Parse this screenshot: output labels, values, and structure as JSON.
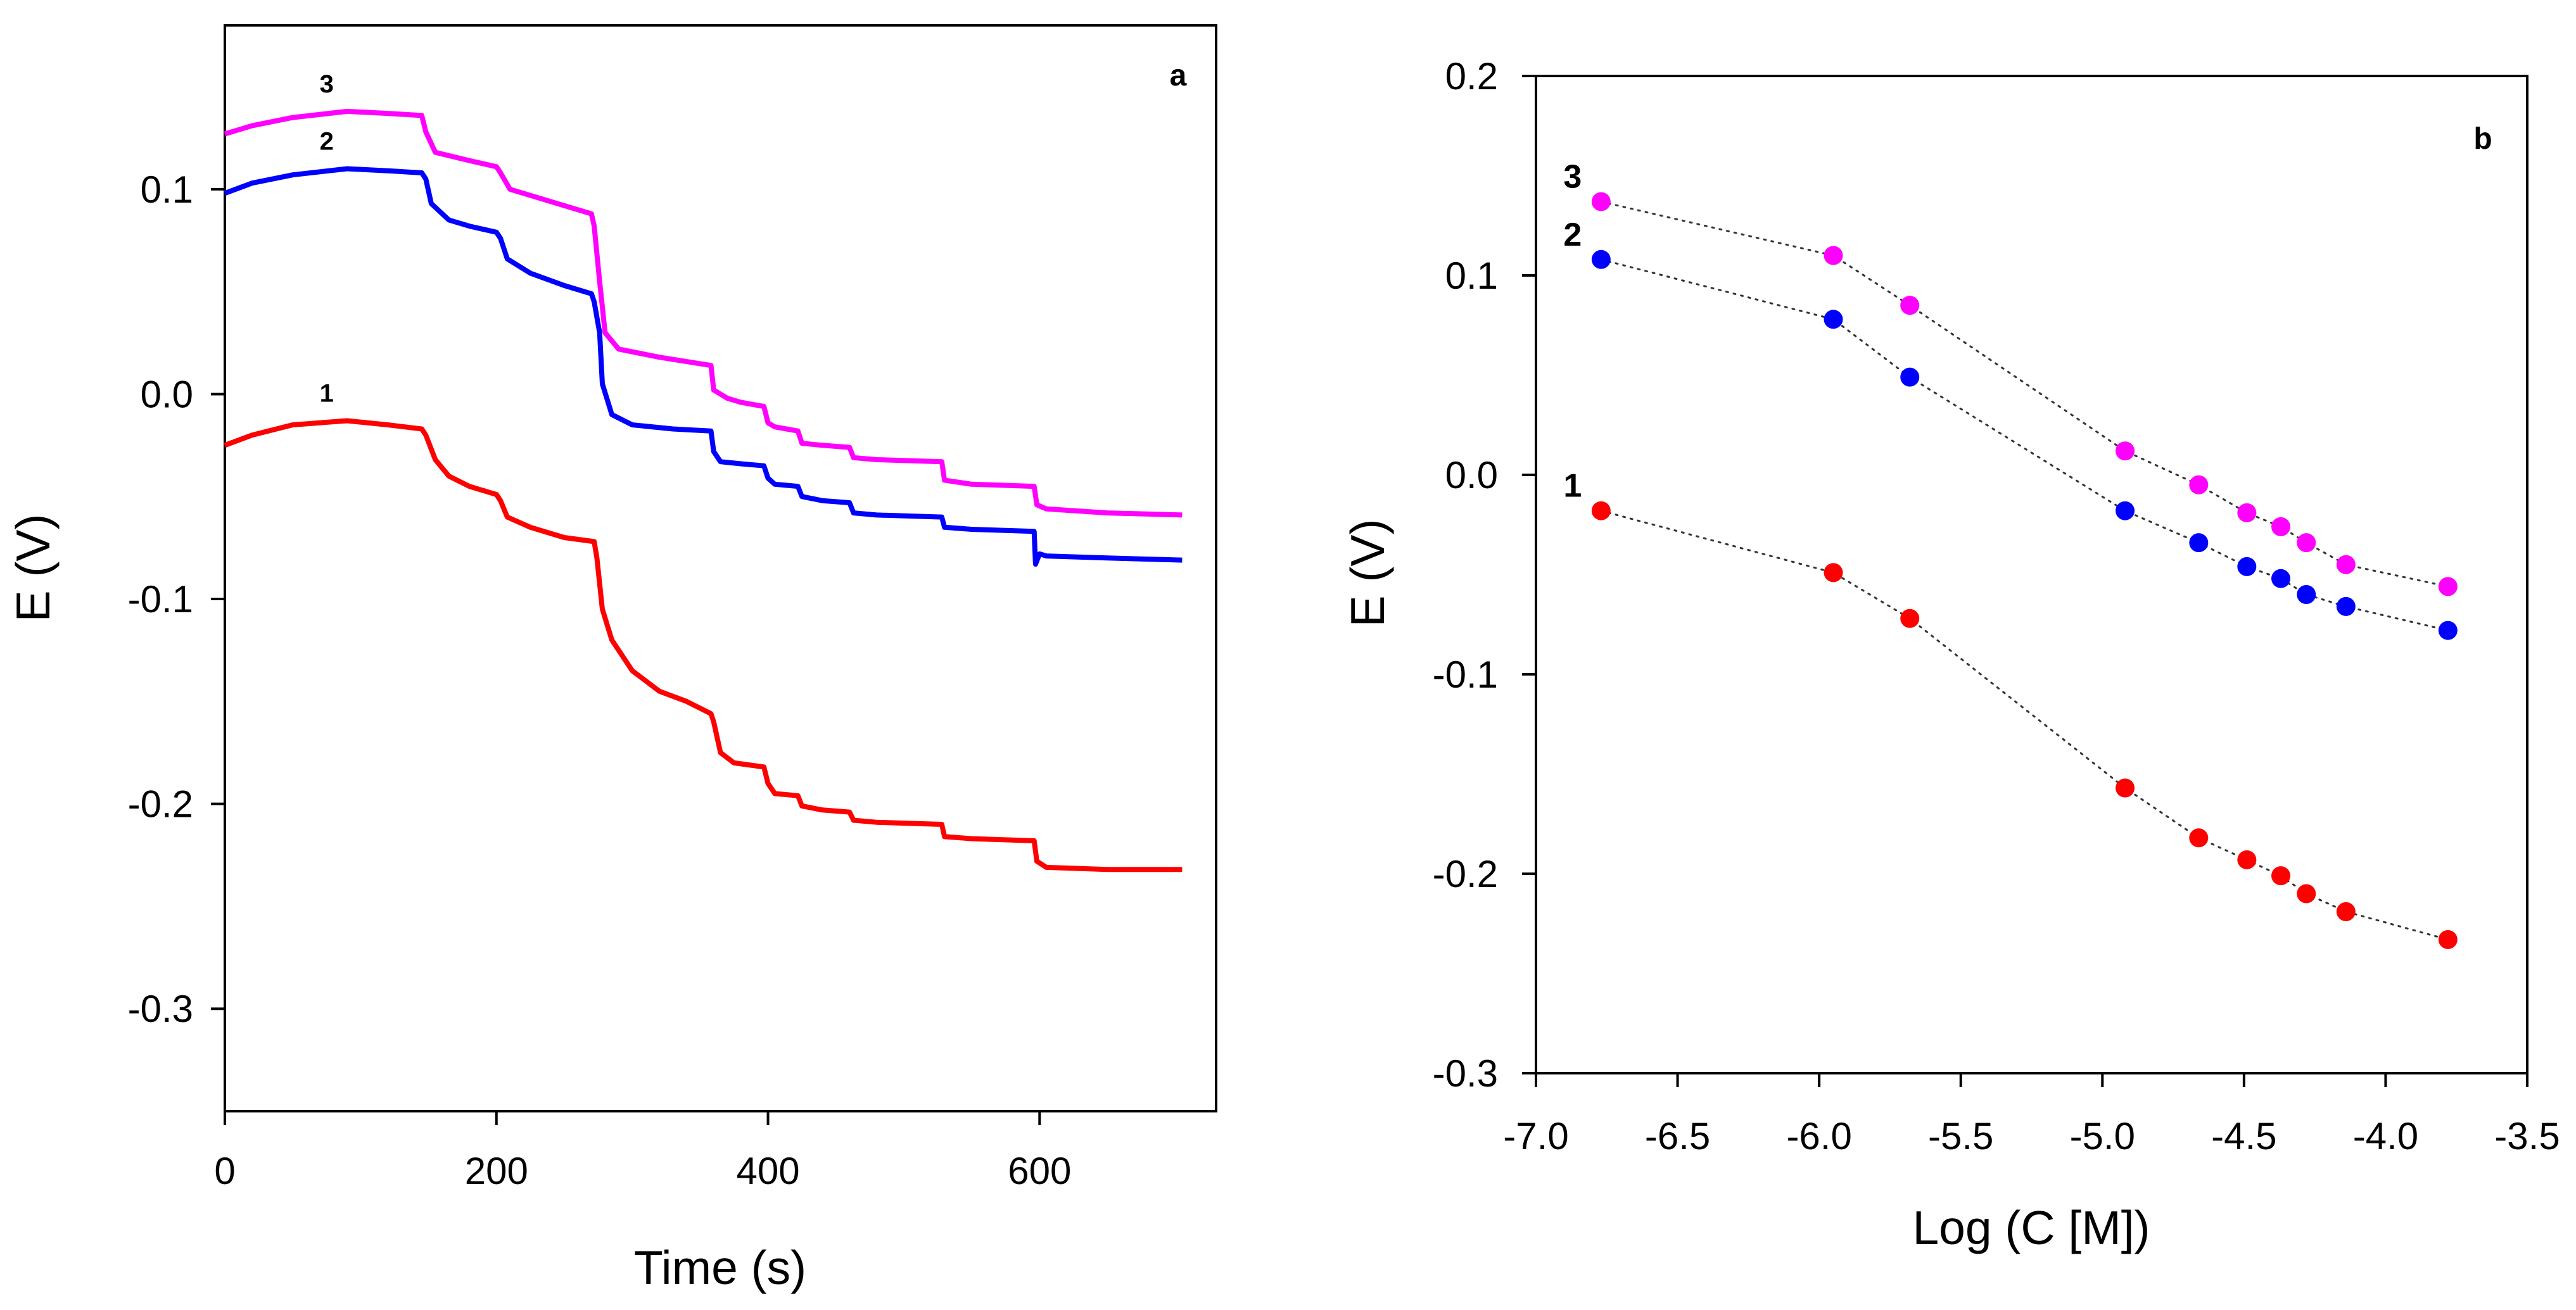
{
  "chart_data": [
    {
      "type": "line",
      "panel": "a",
      "title": "",
      "xlabel": "Time (s)",
      "ylabel": "E (V)",
      "xlim": [
        0,
        730
      ],
      "ylim": [
        -0.35,
        0.18
      ],
      "xticks": [
        0,
        200,
        400,
        600
      ],
      "xtick_labels": [
        "0",
        "200",
        "400",
        "600"
      ],
      "yticks": [
        0.1,
        0.0,
        -0.1,
        -0.2,
        -0.3
      ],
      "ytick_labels": [
        "0.1",
        "0.0",
        "-0.1",
        "-0.2",
        "-0.3"
      ],
      "grid": false,
      "series": [
        {
          "name": "1",
          "color": "#ff0000",
          "points": [
            [
              0,
              -0.025
            ],
            [
              20,
              -0.02
            ],
            [
              50,
              -0.015
            ],
            [
              90,
              -0.013
            ],
            [
              120,
              -0.015
            ],
            [
              145,
              -0.017
            ],
            [
              148,
              -0.02
            ],
            [
              155,
              -0.032
            ],
            [
              165,
              -0.04
            ],
            [
              180,
              -0.045
            ],
            [
              195,
              -0.048
            ],
            [
              200,
              -0.049
            ],
            [
              203,
              -0.052
            ],
            [
              208,
              -0.06
            ],
            [
              225,
              -0.065
            ],
            [
              250,
              -0.07
            ],
            [
              272,
              -0.072
            ],
            [
              274,
              -0.08
            ],
            [
              278,
              -0.105
            ],
            [
              285,
              -0.12
            ],
            [
              300,
              -0.135
            ],
            [
              320,
              -0.145
            ],
            [
              340,
              -0.15
            ],
            [
              358,
              -0.156
            ],
            [
              360,
              -0.16
            ],
            [
              365,
              -0.175
            ],
            [
              375,
              -0.18
            ],
            [
              397,
              -0.182
            ],
            [
              400,
              -0.19
            ],
            [
              405,
              -0.195
            ],
            [
              422,
              -0.196
            ],
            [
              425,
              -0.201
            ],
            [
              440,
              -0.203
            ],
            [
              460,
              -0.204
            ],
            [
              463,
              -0.208
            ],
            [
              480,
              -0.209
            ],
            [
              528,
              -0.21
            ],
            [
              530,
              -0.216
            ],
            [
              550,
              -0.217
            ],
            [
              596,
              -0.218
            ],
            [
              598,
              -0.228
            ],
            [
              605,
              -0.231
            ],
            [
              650,
              -0.232
            ],
            [
              705,
              -0.232
            ]
          ]
        },
        {
          "name": "2",
          "color": "#0000ff",
          "points": [
            [
              0,
              0.098
            ],
            [
              20,
              0.103
            ],
            [
              50,
              0.107
            ],
            [
              90,
              0.11
            ],
            [
              120,
              0.109
            ],
            [
              145,
              0.108
            ],
            [
              148,
              0.105
            ],
            [
              152,
              0.093
            ],
            [
              165,
              0.085
            ],
            [
              180,
              0.082
            ],
            [
              200,
              0.079
            ],
            [
              203,
              0.076
            ],
            [
              208,
              0.066
            ],
            [
              225,
              0.059
            ],
            [
              250,
              0.053
            ],
            [
              270,
              0.049
            ],
            [
              272,
              0.045
            ],
            [
              276,
              0.03
            ],
            [
              278,
              0.005
            ],
            [
              285,
              -0.01
            ],
            [
              300,
              -0.015
            ],
            [
              330,
              -0.017
            ],
            [
              358,
              -0.018
            ],
            [
              360,
              -0.028
            ],
            [
              365,
              -0.033
            ],
            [
              380,
              -0.034
            ],
            [
              397,
              -0.035
            ],
            [
              400,
              -0.041
            ],
            [
              405,
              -0.044
            ],
            [
              422,
              -0.045
            ],
            [
              425,
              -0.05
            ],
            [
              440,
              -0.052
            ],
            [
              460,
              -0.053
            ],
            [
              463,
              -0.058
            ],
            [
              480,
              -0.059
            ],
            [
              528,
              -0.06
            ],
            [
              530,
              -0.065
            ],
            [
              550,
              -0.066
            ],
            [
              596,
              -0.067
            ],
            [
              597,
              -0.083
            ],
            [
              600,
              -0.078
            ],
            [
              605,
              -0.079
            ],
            [
              650,
              -0.08
            ],
            [
              705,
              -0.081
            ]
          ]
        },
        {
          "name": "3",
          "color": "#ff00ff",
          "points": [
            [
              0,
              0.127
            ],
            [
              20,
              0.131
            ],
            [
              50,
              0.135
            ],
            [
              90,
              0.138
            ],
            [
              120,
              0.137
            ],
            [
              145,
              0.136
            ],
            [
              148,
              0.128
            ],
            [
              155,
              0.118
            ],
            [
              180,
              0.114
            ],
            [
              200,
              0.111
            ],
            [
              203,
              0.108
            ],
            [
              210,
              0.1
            ],
            [
              250,
              0.092
            ],
            [
              270,
              0.088
            ],
            [
              272,
              0.082
            ],
            [
              276,
              0.055
            ],
            [
              280,
              0.03
            ],
            [
              290,
              0.022
            ],
            [
              320,
              0.018
            ],
            [
              358,
              0.014
            ],
            [
              360,
              0.002
            ],
            [
              370,
              -0.002
            ],
            [
              380,
              -0.004
            ],
            [
              397,
              -0.006
            ],
            [
              400,
              -0.014
            ],
            [
              405,
              -0.016
            ],
            [
              422,
              -0.018
            ],
            [
              425,
              -0.024
            ],
            [
              440,
              -0.025
            ],
            [
              460,
              -0.026
            ],
            [
              463,
              -0.031
            ],
            [
              480,
              -0.032
            ],
            [
              528,
              -0.033
            ],
            [
              530,
              -0.042
            ],
            [
              550,
              -0.044
            ],
            [
              596,
              -0.045
            ],
            [
              598,
              -0.054
            ],
            [
              605,
              -0.056
            ],
            [
              650,
              -0.058
            ],
            [
              705,
              -0.059
            ]
          ]
        }
      ]
    },
    {
      "type": "scatter",
      "panel": "b",
      "title": "",
      "xlabel": "Log (C [M])",
      "ylabel": "E (V)",
      "xlim": [
        -7.0,
        -3.5
      ],
      "ylim": [
        -0.3,
        0.2
      ],
      "xticks": [
        -7.0,
        -6.5,
        -6.0,
        -5.5,
        -5.0,
        -4.5,
        -4.0,
        -3.5
      ],
      "xtick_labels": [
        "-7.0",
        "-6.5",
        "-6.0",
        "-5.5",
        "-5.0",
        "-4.5",
        "-4.0",
        "-3.5"
      ],
      "yticks": [
        0.2,
        0.1,
        0.0,
        -0.1,
        -0.2,
        -0.3
      ],
      "ytick_labels": [
        "0.2",
        "0.1",
        "0.0",
        "-0.1",
        "-0.2",
        "-0.3"
      ],
      "grid": false,
      "line_style": "dotted",
      "series": [
        {
          "name": "1",
          "color": "#ff0000",
          "x": [
            -6.77,
            -5.95,
            -5.68,
            -4.92,
            -4.66,
            -4.49,
            -4.37,
            -4.28,
            -4.14,
            -3.78
          ],
          "y": [
            -0.018,
            -0.049,
            -0.072,
            -0.157,
            -0.182,
            -0.193,
            -0.201,
            -0.21,
            -0.219,
            -0.233
          ]
        },
        {
          "name": "2",
          "color": "#0000ff",
          "x": [
            -6.77,
            -5.95,
            -5.68,
            -4.92,
            -4.66,
            -4.49,
            -4.37,
            -4.28,
            -4.14,
            -3.78
          ],
          "y": [
            0.108,
            0.078,
            0.049,
            -0.018,
            -0.034,
            -0.046,
            -0.052,
            -0.06,
            -0.066,
            -0.078
          ]
        },
        {
          "name": "3",
          "color": "#ff00ff",
          "x": [
            -6.77,
            -5.95,
            -5.68,
            -4.92,
            -4.66,
            -4.49,
            -4.37,
            -4.28,
            -4.14,
            -3.78
          ],
          "y": [
            0.137,
            0.11,
            0.085,
            0.012,
            -0.005,
            -0.019,
            -0.026,
            -0.034,
            -0.045,
            -0.056
          ]
        }
      ]
    }
  ]
}
